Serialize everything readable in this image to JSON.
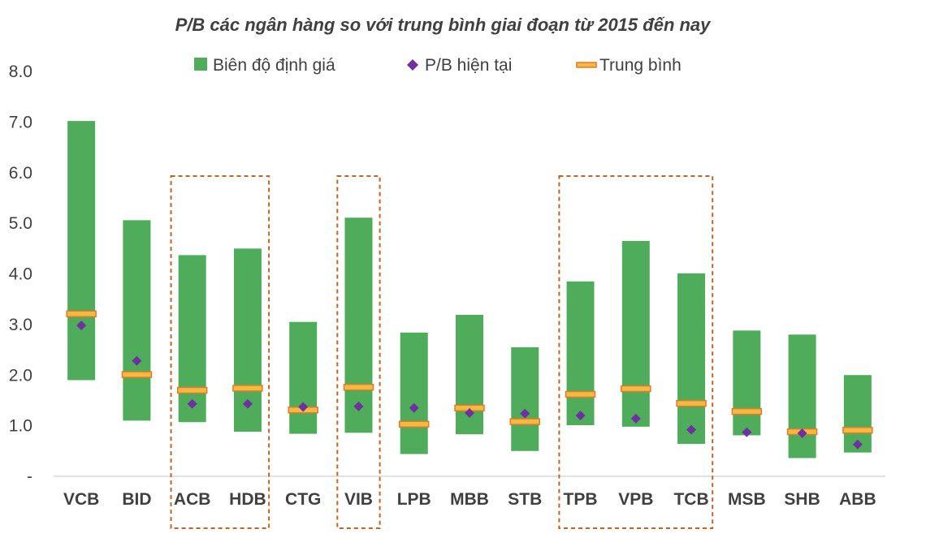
{
  "chart_data": {
    "type": "bar",
    "title": "P/B các ngân hàng so với trung bình giai đoạn từ 2015 đến nay",
    "xlabel": "",
    "ylabel": "",
    "ylim": [
      0,
      8
    ],
    "y_ticks": [
      {
        "value": 0,
        "label": "-"
      },
      {
        "value": 1,
        "label": "1.0"
      },
      {
        "value": 2,
        "label": "2.0"
      },
      {
        "value": 3,
        "label": "3.0"
      },
      {
        "value": 4,
        "label": "4.0"
      },
      {
        "value": 5,
        "label": "5.0"
      },
      {
        "value": 6,
        "label": "6.0"
      },
      {
        "value": 7,
        "label": "7.0"
      },
      {
        "value": 8,
        "label": "8.0"
      }
    ],
    "grid": false,
    "legend_position": "top",
    "categories": [
      "VCB",
      "BID",
      "ACB",
      "HDB",
      "CTG",
      "VIB",
      "LPB",
      "MBB",
      "STB",
      "TPB",
      "VPB",
      "TCB",
      "MSB",
      "SHB",
      "ABB"
    ],
    "series": [
      {
        "name": "Biên độ định giá",
        "kind": "floating-bar",
        "color": "#4EAC5B",
        "low": [
          1.9,
          1.1,
          1.07,
          0.88,
          0.84,
          0.86,
          0.44,
          0.83,
          0.5,
          1.01,
          0.98,
          0.64,
          0.81,
          0.36,
          0.47
        ],
        "high": [
          7.02,
          5.06,
          4.37,
          4.5,
          3.05,
          5.11,
          2.84,
          3.19,
          2.55,
          3.85,
          4.65,
          4.01,
          2.88,
          2.8,
          2.0
        ]
      },
      {
        "name": "P/B hiện tại",
        "kind": "marker",
        "color": "#7030A0",
        "values": [
          2.98,
          2.28,
          1.43,
          1.43,
          1.37,
          1.38,
          1.35,
          1.25,
          1.24,
          1.2,
          1.14,
          0.92,
          0.87,
          0.85,
          0.63
        ]
      },
      {
        "name": "Trung bình",
        "kind": "mean-line",
        "color": "#F4B942",
        "values": [
          3.21,
          2.01,
          1.7,
          1.74,
          1.31,
          1.76,
          1.03,
          1.35,
          1.08,
          1.62,
          1.73,
          1.44,
          1.28,
          0.88,
          0.91
        ]
      }
    ],
    "highlight_groups": [
      [
        "ACB",
        "HDB"
      ],
      [
        "VIB"
      ],
      [
        "TPB",
        "VPB",
        "TCB"
      ]
    ],
    "colors": {
      "axis": "#D9D9D9",
      "text": "#404040",
      "highlight_box": "#C0652A",
      "mean_stroke": "#E07B2A"
    }
  }
}
